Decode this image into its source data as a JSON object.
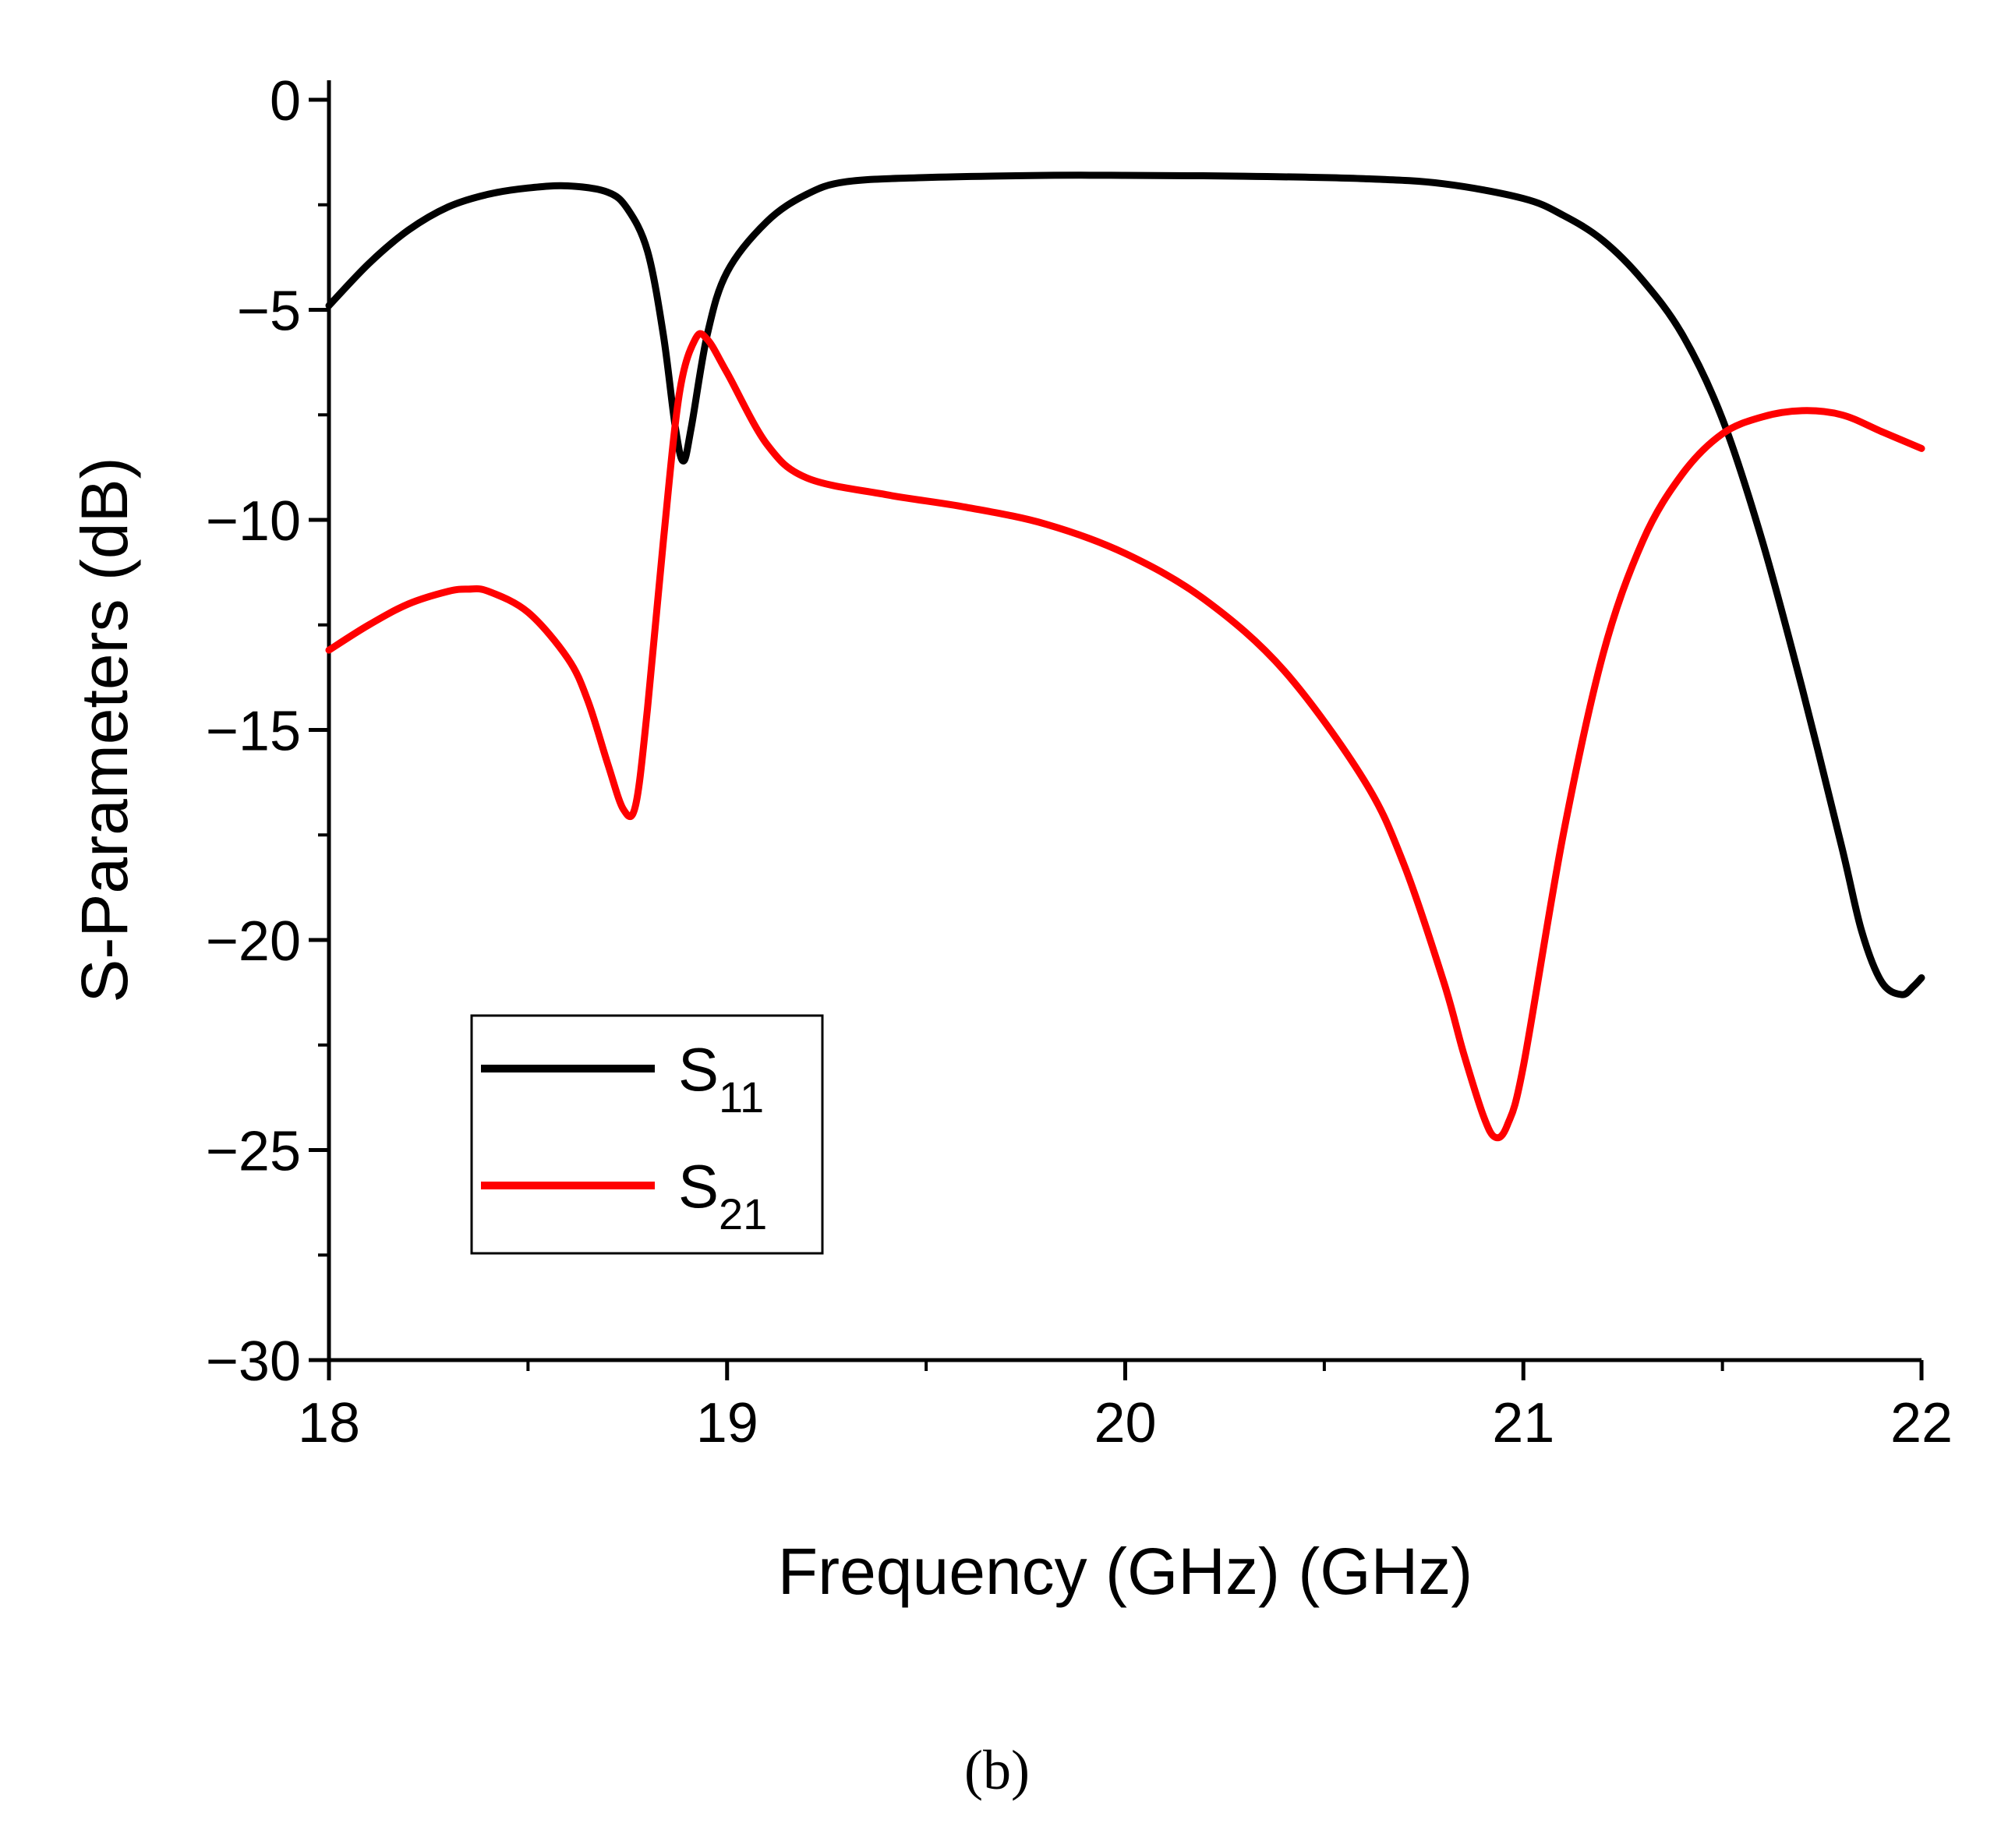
{
  "chart_data": {
    "type": "line",
    "xlabel": "Frequency (GHz) (GHz)",
    "ylabel": "S-Parameters (dB)",
    "xlim": [
      18,
      22
    ],
    "ylim": [
      -30,
      0
    ],
    "x_ticks": [
      18,
      19,
      20,
      21,
      22
    ],
    "x_tick_labels": [
      "18",
      "19",
      "20",
      "21",
      "22"
    ],
    "y_ticks": [
      0,
      -5,
      -10,
      -15,
      -20,
      -25,
      -30
    ],
    "y_tick_labels": [
      "0",
      "−5",
      "−10",
      "−15",
      "−20",
      "−25",
      "−30"
    ],
    "legend_position": "bottom-left",
    "series": [
      {
        "name": "S11",
        "label_main": "S",
        "label_sub": "11",
        "color": "#000000",
        "x": [
          18.0,
          18.1,
          18.2,
          18.3,
          18.4,
          18.5,
          18.6,
          18.7,
          18.75,
          18.8,
          18.84,
          18.87,
          18.89,
          18.91,
          18.95,
          19.0,
          19.1,
          19.2,
          19.3,
          19.5,
          19.8,
          20.0,
          20.3,
          20.6,
          20.8,
          21.0,
          21.1,
          21.2,
          21.3,
          21.4,
          21.5,
          21.6,
          21.7,
          21.8,
          21.85,
          21.9,
          21.95,
          21.98,
          22.0
        ],
        "y": [
          -4.9,
          -3.9,
          -3.1,
          -2.55,
          -2.25,
          -2.1,
          -2.05,
          -2.2,
          -2.6,
          -3.6,
          -5.6,
          -7.8,
          -8.6,
          -7.8,
          -5.6,
          -4.1,
          -2.9,
          -2.25,
          -1.95,
          -1.85,
          -1.8,
          -1.8,
          -1.82,
          -1.88,
          -2.0,
          -2.35,
          -2.75,
          -3.35,
          -4.3,
          -5.6,
          -7.6,
          -10.5,
          -14.0,
          -17.8,
          -19.8,
          -21.0,
          -21.3,
          -21.1,
          -20.9
        ]
      },
      {
        "name": "S21",
        "label_main": "S",
        "label_sub": "21",
        "color": "#ff0000",
        "x": [
          18.0,
          18.1,
          18.2,
          18.3,
          18.35,
          18.4,
          18.5,
          18.6,
          18.65,
          18.7,
          18.74,
          18.77,
          18.8,
          18.84,
          18.88,
          18.92,
          18.95,
          19.0,
          19.1,
          19.2,
          19.4,
          19.6,
          19.8,
          20.0,
          20.2,
          20.4,
          20.6,
          20.7,
          20.8,
          20.85,
          20.9,
          20.93,
          20.96,
          21.0,
          21.1,
          21.2,
          21.3,
          21.4,
          21.5,
          21.6,
          21.7,
          21.8,
          21.9,
          22.0
        ],
        "y": [
          -13.1,
          -12.5,
          -12.0,
          -11.7,
          -11.65,
          -11.7,
          -12.2,
          -13.3,
          -14.3,
          -15.8,
          -16.9,
          -16.8,
          -14.5,
          -10.5,
          -7.0,
          -5.7,
          -5.7,
          -6.5,
          -8.2,
          -9.0,
          -9.4,
          -9.7,
          -10.1,
          -10.8,
          -11.9,
          -13.6,
          -16.2,
          -18.2,
          -21.0,
          -22.7,
          -24.2,
          -24.7,
          -24.4,
          -23.0,
          -17.5,
          -13.2,
          -10.5,
          -8.9,
          -7.95,
          -7.55,
          -7.4,
          -7.5,
          -7.9,
          -8.3
        ]
      }
    ]
  },
  "caption": "(b)"
}
